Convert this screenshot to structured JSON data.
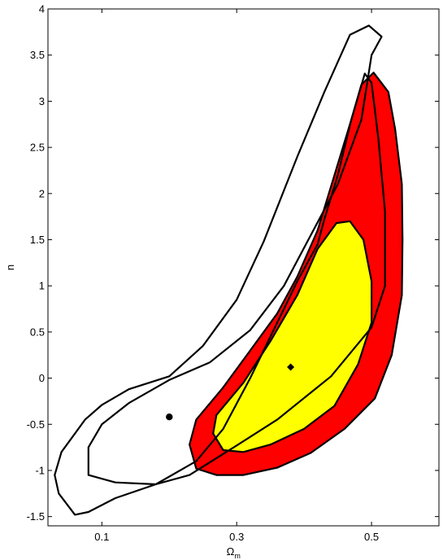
{
  "chart_data": {
    "type": "contour",
    "xlabel": "Ω",
    "xlabel_sub": "m",
    "ylabel": "n",
    "xlim": [
      0.02,
      0.6
    ],
    "ylim": [
      -1.6,
      4.0
    ],
    "xticks": [
      0.1,
      0.3,
      0.5
    ],
    "xtick_labels": [
      "0.1",
      "0.3",
      "0.5"
    ],
    "yticks": [
      -1.5,
      -1,
      -0.5,
      0,
      0.5,
      1,
      1.5,
      2,
      2.5,
      3,
      3.5,
      4
    ],
    "ytick_labels": [
      "-1.5",
      "-1",
      "-0.5",
      "0",
      "0.5",
      "1",
      "1.5",
      "2",
      "2.5",
      "3",
      "3.5",
      "4"
    ],
    "grid": false,
    "colors": {
      "outer_filled": "#ff0000",
      "inner_filled": "#ffff00",
      "outline": "#000000"
    },
    "contours": [
      {
        "id": "outline-outer",
        "fill": "none",
        "points": [
          [
            0.036,
            -1.25
          ],
          [
            0.03,
            -1.05
          ],
          [
            0.04,
            -0.8
          ],
          [
            0.06,
            -0.6
          ],
          [
            0.075,
            -0.45
          ],
          [
            0.1,
            -0.29
          ],
          [
            0.14,
            -0.12
          ],
          [
            0.2,
            0.02
          ],
          [
            0.25,
            0.35
          ],
          [
            0.3,
            0.85
          ],
          [
            0.34,
            1.48
          ],
          [
            0.39,
            2.4
          ],
          [
            0.43,
            3.1
          ],
          [
            0.468,
            3.72
          ],
          [
            0.496,
            3.82
          ],
          [
            0.515,
            3.7
          ],
          [
            0.5,
            3.5
          ],
          [
            0.485,
            2.8
          ],
          [
            0.45,
            2.1
          ],
          [
            0.41,
            1.55
          ],
          [
            0.37,
            1.0
          ],
          [
            0.32,
            0.52
          ],
          [
            0.26,
            0.17
          ],
          [
            0.2,
            -0.02
          ],
          [
            0.14,
            -0.27
          ],
          [
            0.1,
            -0.5
          ],
          [
            0.08,
            -0.75
          ],
          [
            0.08,
            -1.05
          ],
          [
            0.12,
            -1.13
          ],
          [
            0.18,
            -1.15
          ],
          [
            0.23,
            -1.05
          ],
          [
            0.3,
            -0.73
          ],
          [
            0.36,
            -0.45
          ],
          [
            0.44,
            0.02
          ],
          [
            0.5,
            0.55
          ],
          [
            0.52,
            1.0
          ],
          [
            0.52,
            1.8
          ],
          [
            0.51,
            2.6
          ],
          [
            0.5,
            3.2
          ],
          [
            0.49,
            3.3
          ],
          [
            0.47,
            2.8
          ],
          [
            0.45,
            2.2
          ],
          [
            0.43,
            1.72
          ],
          [
            0.42,
            1.45
          ],
          [
            0.39,
            1.05
          ],
          [
            0.37,
            0.75
          ],
          [
            0.35,
            0.45
          ],
          [
            0.32,
            0.0
          ],
          [
            0.28,
            -0.55
          ],
          [
            0.24,
            -0.9
          ],
          [
            0.18,
            -1.15
          ],
          [
            0.12,
            -1.3
          ],
          [
            0.08,
            -1.45
          ],
          [
            0.06,
            -1.48
          ],
          [
            0.036,
            -1.25
          ]
        ]
      },
      {
        "id": "contour-red",
        "fill": "#ff0000",
        "points": [
          [
            0.27,
            -1.05
          ],
          [
            0.24,
            -0.98
          ],
          [
            0.23,
            -0.72
          ],
          [
            0.24,
            -0.45
          ],
          [
            0.28,
            -0.1
          ],
          [
            0.32,
            0.3
          ],
          [
            0.36,
            0.7
          ],
          [
            0.39,
            1.1
          ],
          [
            0.42,
            1.6
          ],
          [
            0.445,
            2.2
          ],
          [
            0.47,
            2.8
          ],
          [
            0.485,
            3.18
          ],
          [
            0.503,
            3.31
          ],
          [
            0.525,
            3.1
          ],
          [
            0.535,
            2.7
          ],
          [
            0.545,
            2.1
          ],
          [
            0.546,
            1.5
          ],
          [
            0.545,
            0.9
          ],
          [
            0.53,
            0.25
          ],
          [
            0.505,
            -0.22
          ],
          [
            0.46,
            -0.55
          ],
          [
            0.41,
            -0.81
          ],
          [
            0.36,
            -0.97
          ],
          [
            0.31,
            -1.05
          ],
          [
            0.27,
            -1.05
          ]
        ]
      },
      {
        "id": "contour-yellow",
        "fill": "#ffff00",
        "points": [
          [
            0.28,
            -0.78
          ],
          [
            0.265,
            -0.6
          ],
          [
            0.27,
            -0.4
          ],
          [
            0.31,
            -0.05
          ],
          [
            0.35,
            0.4
          ],
          [
            0.39,
            0.9
          ],
          [
            0.42,
            1.4
          ],
          [
            0.448,
            1.68
          ],
          [
            0.468,
            1.7
          ],
          [
            0.488,
            1.5
          ],
          [
            0.5,
            1.05
          ],
          [
            0.5,
            0.6
          ],
          [
            0.48,
            0.15
          ],
          [
            0.445,
            -0.3
          ],
          [
            0.4,
            -0.55
          ],
          [
            0.35,
            -0.72
          ],
          [
            0.31,
            -0.8
          ],
          [
            0.28,
            -0.78
          ]
        ]
      }
    ],
    "markers": [
      {
        "id": "best-fit-circle",
        "shape": "circle",
        "x": 0.2,
        "y": -0.42
      },
      {
        "id": "best-fit-diamond",
        "shape": "diamond",
        "x": 0.38,
        "y": 0.12
      }
    ]
  }
}
